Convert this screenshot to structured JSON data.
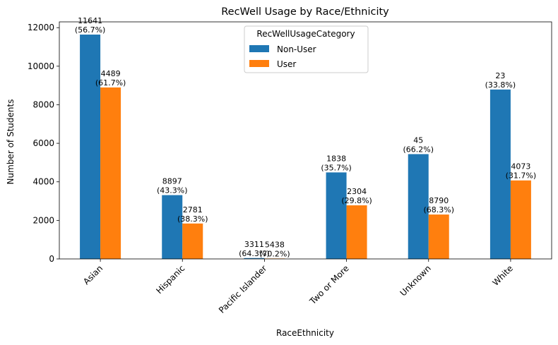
{
  "chart_data": {
    "type": "bar",
    "title": "RecWell Usage by Race/Ethnicity",
    "xlabel": "RaceEthnicity",
    "ylabel": "Number of Students",
    "ylim": [
      0,
      12300
    ],
    "yticks": [
      0,
      2000,
      4000,
      6000,
      8000,
      10000,
      12000
    ],
    "ytick_labels": [
      "0",
      "2000",
      "4000",
      "6000",
      "8000",
      "10000",
      "12000"
    ],
    "categories": [
      "Asian",
      "Hispanic",
      "Pacific Islander",
      "Two or More",
      "Unknown",
      "White"
    ],
    "legend": {
      "title": "RecWellUsageCategory",
      "placement": "upper-center"
    },
    "grid": false,
    "series": [
      {
        "name": "Non-User",
        "color": "#1f77b4",
        "values": [
          11641,
          3311,
          45,
          4489,
          5438,
          8790
        ],
        "labels": [
          [
            "11641",
            "(56.7%)"
          ],
          [
            "8897",
            "(43.3%)"
          ],
          [
            "3311",
            "(64.3%)"
          ],
          [
            "1838",
            "(35.7%)"
          ],
          [
            "45",
            "(66.2%)"
          ],
          [
            "23",
            "(33.8%)"
          ]
        ]
      },
      {
        "name": "User",
        "color": "#ff7f0e",
        "values": [
          8897,
          1838,
          23,
          2781,
          2304,
          4073
        ],
        "labels": [
          [
            "4489",
            "(61.7%)"
          ],
          [
            "2781",
            "(38.3%)"
          ],
          [
            "5438",
            "(70.2%)"
          ],
          [
            "2304",
            "(29.8%)"
          ],
          [
            "8790",
            "(68.3%)"
          ],
          [
            "4073",
            "(31.7%)"
          ]
        ]
      }
    ]
  }
}
